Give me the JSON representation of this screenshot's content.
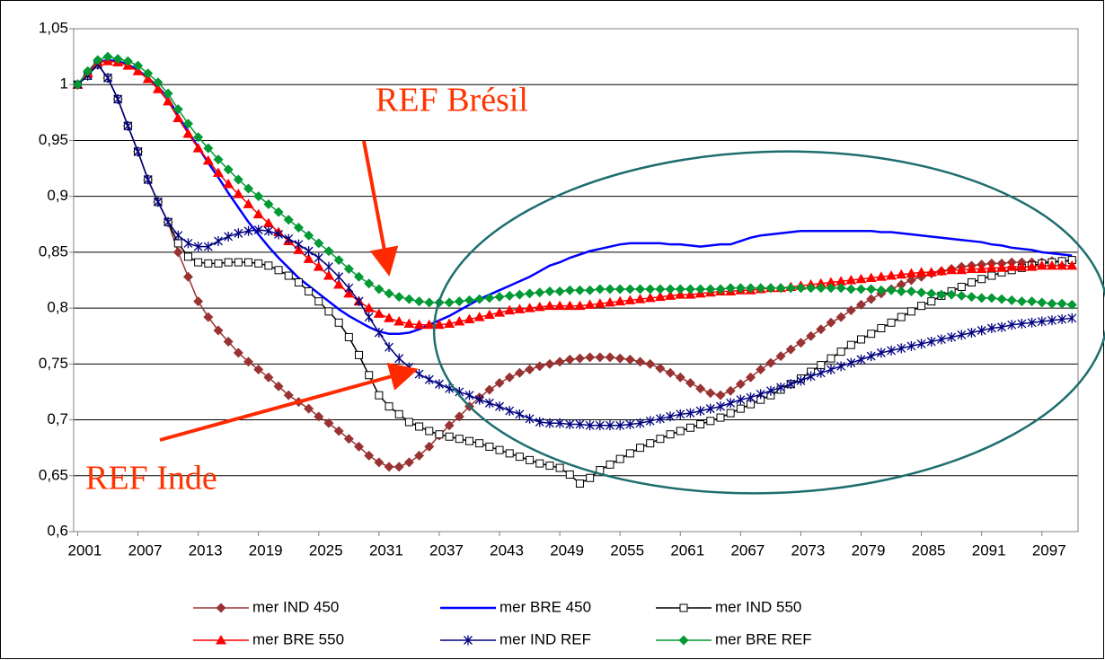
{
  "chart_data": {
    "type": "line",
    "annotations": [
      "REF Brésil",
      "REF Inde"
    ],
    "x": [
      2001,
      2002,
      2003,
      2004,
      2005,
      2006,
      2007,
      2008,
      2009,
      2010,
      2011,
      2012,
      2013,
      2014,
      2015,
      2016,
      2017,
      2018,
      2019,
      2020,
      2021,
      2022,
      2023,
      2024,
      2025,
      2026,
      2027,
      2028,
      2029,
      2030,
      2031,
      2032,
      2033,
      2034,
      2035,
      2036,
      2037,
      2038,
      2039,
      2040,
      2041,
      2042,
      2043,
      2044,
      2045,
      2046,
      2047,
      2048,
      2049,
      2050,
      2051,
      2052,
      2053,
      2054,
      2055,
      2056,
      2057,
      2058,
      2059,
      2060,
      2061,
      2062,
      2063,
      2064,
      2065,
      2066,
      2067,
      2068,
      2069,
      2070,
      2071,
      2072,
      2073,
      2074,
      2075,
      2076,
      2077,
      2078,
      2079,
      2080,
      2081,
      2082,
      2083,
      2084,
      2085,
      2086,
      2087,
      2088,
      2089,
      2090,
      2091,
      2092,
      2093,
      2094,
      2095,
      2096,
      2097,
      2098,
      2099,
      2100
    ],
    "xlim": [
      2000.6,
      2100.6
    ],
    "xticks": [
      2001,
      2007,
      2013,
      2019,
      2025,
      2031,
      2037,
      2043,
      2049,
      2055,
      2061,
      2067,
      2073,
      2079,
      2085,
      2091,
      2097
    ],
    "ylim": [
      0.6,
      1.05
    ],
    "yticks": [
      {
        "value": 0.6,
        "label": "0,6"
      },
      {
        "value": 0.65,
        "label": "0,65"
      },
      {
        "value": 0.7,
        "label": "0,7"
      },
      {
        "value": 0.75,
        "label": "0,75"
      },
      {
        "value": 0.8,
        "label": "0,8"
      },
      {
        "value": 0.85,
        "label": "0,85"
      },
      {
        "value": 0.9,
        "label": "0,9"
      },
      {
        "value": 0.95,
        "label": "0,95"
      },
      1,
      {
        "value": 1.05,
        "label": "1,05"
      }
    ],
    "grid": true,
    "legend": "bottom",
    "series": [
      {
        "name": "mer IND 450",
        "color": "#993333",
        "marker": "diamond",
        "values": [
          1,
          1.008,
          1.018,
          1.006,
          0.987,
          0.963,
          0.94,
          0.915,
          0.895,
          0.877,
          0.85,
          0.828,
          0.806,
          0.792,
          0.78,
          0.77,
          0.76,
          0.752,
          0.745,
          0.738,
          0.73,
          0.722,
          0.716,
          0.71,
          0.703,
          0.697,
          0.69,
          0.683,
          0.676,
          0.668,
          0.662,
          0.658,
          0.658,
          0.662,
          0.668,
          0.676,
          0.686,
          0.695,
          0.703,
          0.712,
          0.72,
          0.727,
          0.733,
          0.738,
          0.742,
          0.745,
          0.748,
          0.75,
          0.752,
          0.754,
          0.755,
          0.756,
          0.756,
          0.756,
          0.755,
          0.754,
          0.752,
          0.75,
          0.746,
          0.742,
          0.738,
          0.733,
          0.728,
          0.724,
          0.722,
          0.726,
          0.732,
          0.738,
          0.745,
          0.751,
          0.757,
          0.763,
          0.769,
          0.775,
          0.781,
          0.787,
          0.792,
          0.798,
          0.803,
          0.808,
          0.813,
          0.817,
          0.821,
          0.825,
          0.828,
          0.831,
          0.833,
          0.835,
          0.837,
          0.838,
          0.839,
          0.84,
          0.84,
          0.841,
          0.841,
          0.841,
          0.841,
          0.842,
          0.842,
          0.842
        ]
      },
      {
        "name": "mer BRE 450",
        "color": "#0000ff",
        "marker": "none",
        "values": [
          1,
          1.01,
          1.02,
          1.022,
          1.021,
          1.018,
          1.013,
          1.006,
          0.998,
          0.988,
          0.972,
          0.958,
          0.944,
          0.93,
          0.917,
          0.903,
          0.89,
          0.877,
          0.866,
          0.855,
          0.845,
          0.836,
          0.827,
          0.82,
          0.813,
          0.806,
          0.799,
          0.793,
          0.788,
          0.783,
          0.779,
          0.777,
          0.777,
          0.778,
          0.781,
          0.785,
          0.789,
          0.793,
          0.798,
          0.803,
          0.808,
          0.812,
          0.816,
          0.82,
          0.824,
          0.828,
          0.833,
          0.838,
          0.841,
          0.845,
          0.848,
          0.851,
          0.853,
          0.855,
          0.857,
          0.858,
          0.858,
          0.858,
          0.858,
          0.857,
          0.857,
          0.856,
          0.855,
          0.856,
          0.857,
          0.857,
          0.86,
          0.863,
          0.865,
          0.866,
          0.867,
          0.868,
          0.869,
          0.869,
          0.869,
          0.869,
          0.869,
          0.869,
          0.869,
          0.869,
          0.868,
          0.868,
          0.867,
          0.866,
          0.865,
          0.864,
          0.863,
          0.862,
          0.861,
          0.86,
          0.859,
          0.857,
          0.856,
          0.854,
          0.853,
          0.852,
          0.85,
          0.849,
          0.848,
          0.847
        ]
      },
      {
        "name": "mer IND 550",
        "color": "#000000",
        "marker": "square",
        "values": [
          1,
          1.008,
          1.018,
          1.006,
          0.987,
          0.963,
          0.94,
          0.915,
          0.895,
          0.877,
          0.858,
          0.846,
          0.841,
          0.84,
          0.84,
          0.841,
          0.841,
          0.841,
          0.84,
          0.838,
          0.834,
          0.829,
          0.823,
          0.815,
          0.806,
          0.797,
          0.787,
          0.774,
          0.758,
          0.74,
          0.722,
          0.712,
          0.705,
          0.698,
          0.694,
          0.69,
          0.687,
          0.685,
          0.683,
          0.681,
          0.679,
          0.676,
          0.673,
          0.67,
          0.667,
          0.664,
          0.661,
          0.659,
          0.657,
          0.651,
          0.643,
          0.648,
          0.655,
          0.66,
          0.665,
          0.67,
          0.675,
          0.679,
          0.683,
          0.687,
          0.69,
          0.693,
          0.696,
          0.699,
          0.702,
          0.706,
          0.71,
          0.714,
          0.718,
          0.722,
          0.727,
          0.732,
          0.737,
          0.743,
          0.749,
          0.755,
          0.761,
          0.767,
          0.772,
          0.777,
          0.782,
          0.787,
          0.792,
          0.797,
          0.802,
          0.806,
          0.811,
          0.815,
          0.819,
          0.823,
          0.826,
          0.829,
          0.832,
          0.834,
          0.836,
          0.838,
          0.84,
          0.841,
          0.842,
          0.843
        ]
      },
      {
        "name": "mer BRE 550",
        "color": "#ff0000",
        "marker": "triangle",
        "values": [
          1,
          1.01,
          1.02,
          1.021,
          1.02,
          1.017,
          1.012,
          1.005,
          0.996,
          0.985,
          0.97,
          0.956,
          0.943,
          0.932,
          0.921,
          0.911,
          0.902,
          0.893,
          0.884,
          0.876,
          0.868,
          0.86,
          0.852,
          0.844,
          0.837,
          0.829,
          0.821,
          0.813,
          0.806,
          0.8,
          0.795,
          0.791,
          0.788,
          0.786,
          0.785,
          0.785,
          0.785,
          0.786,
          0.788,
          0.79,
          0.792,
          0.794,
          0.796,
          0.798,
          0.799,
          0.8,
          0.801,
          0.802,
          0.802,
          0.802,
          0.802,
          0.803,
          0.804,
          0.805,
          0.806,
          0.807,
          0.808,
          0.809,
          0.81,
          0.811,
          0.812,
          0.812,
          0.813,
          0.814,
          0.815,
          0.815,
          0.816,
          0.816,
          0.817,
          0.818,
          0.818,
          0.819,
          0.82,
          0.821,
          0.822,
          0.823,
          0.824,
          0.825,
          0.826,
          0.827,
          0.828,
          0.829,
          0.83,
          0.831,
          0.832,
          0.832,
          0.833,
          0.834,
          0.834,
          0.835,
          0.835,
          0.836,
          0.836,
          0.837,
          0.837,
          0.837,
          0.838,
          0.838,
          0.838,
          0.838
        ]
      },
      {
        "name": "mer IND REF",
        "color": "#000080",
        "marker": "star",
        "values": [
          1,
          1.008,
          1.018,
          1.006,
          0.987,
          0.963,
          0.94,
          0.915,
          0.895,
          0.877,
          0.865,
          0.858,
          0.855,
          0.855,
          0.86,
          0.864,
          0.867,
          0.869,
          0.87,
          0.869,
          0.866,
          0.862,
          0.857,
          0.851,
          0.845,
          0.837,
          0.828,
          0.818,
          0.806,
          0.792,
          0.778,
          0.765,
          0.755,
          0.747,
          0.741,
          0.736,
          0.732,
          0.728,
          0.725,
          0.722,
          0.718,
          0.715,
          0.712,
          0.708,
          0.705,
          0.701,
          0.698,
          0.697,
          0.697,
          0.696,
          0.696,
          0.695,
          0.695,
          0.695,
          0.695,
          0.696,
          0.697,
          0.699,
          0.701,
          0.703,
          0.705,
          0.706,
          0.708,
          0.71,
          0.712,
          0.715,
          0.718,
          0.72,
          0.723,
          0.726,
          0.729,
          0.732,
          0.735,
          0.739,
          0.742,
          0.745,
          0.748,
          0.751,
          0.754,
          0.757,
          0.76,
          0.762,
          0.764,
          0.766,
          0.768,
          0.77,
          0.772,
          0.774,
          0.776,
          0.778,
          0.78,
          0.782,
          0.783,
          0.785,
          0.786,
          0.787,
          0.788,
          0.789,
          0.79,
          0.791
        ]
      },
      {
        "name": "mer BRE REF",
        "color": "#009933",
        "marker": "diamond",
        "values": [
          1,
          1.012,
          1.022,
          1.025,
          1.023,
          1.021,
          1.017,
          1.01,
          1.002,
          0.992,
          0.978,
          0.965,
          0.953,
          0.943,
          0.933,
          0.924,
          0.915,
          0.907,
          0.9,
          0.893,
          0.886,
          0.879,
          0.872,
          0.865,
          0.858,
          0.851,
          0.843,
          0.835,
          0.828,
          0.822,
          0.817,
          0.813,
          0.81,
          0.808,
          0.806,
          0.805,
          0.805,
          0.805,
          0.806,
          0.807,
          0.808,
          0.809,
          0.81,
          0.811,
          0.812,
          0.813,
          0.814,
          0.815,
          0.815,
          0.816,
          0.816,
          0.816,
          0.817,
          0.817,
          0.817,
          0.817,
          0.817,
          0.817,
          0.817,
          0.817,
          0.817,
          0.817,
          0.817,
          0.817,
          0.817,
          0.818,
          0.818,
          0.818,
          0.818,
          0.818,
          0.818,
          0.818,
          0.818,
          0.818,
          0.818,
          0.818,
          0.818,
          0.817,
          0.817,
          0.817,
          0.816,
          0.816,
          0.815,
          0.815,
          0.814,
          0.813,
          0.812,
          0.812,
          0.811,
          0.81,
          0.809,
          0.809,
          0.808,
          0.807,
          0.806,
          0.806,
          0.805,
          0.804,
          0.804,
          0.803
        ]
      }
    ]
  }
}
